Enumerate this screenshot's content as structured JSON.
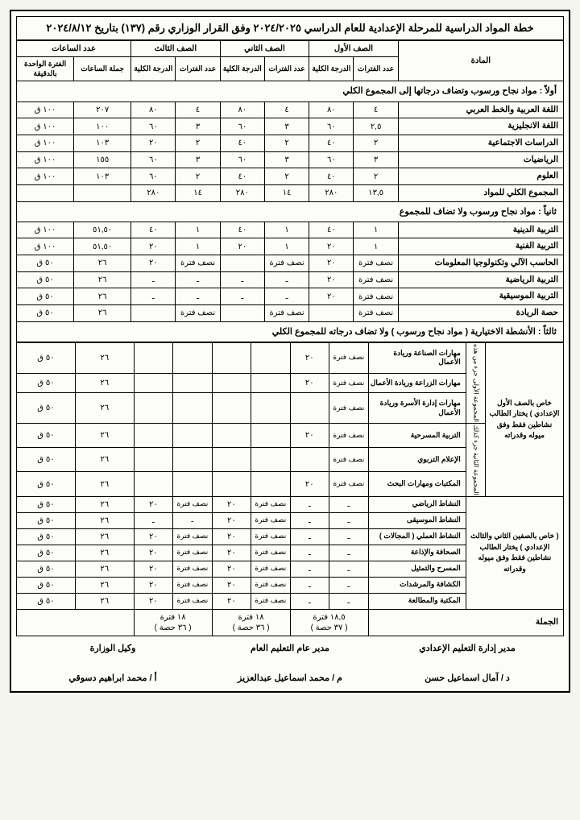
{
  "title": "خطة المواد الدراسية للمرحلة الإعدادية للعام الدراسي ٢٠٢٤/٢٠٢٥ وفق القرار الوزاري رقم (١٣٧) بتاريخ ٢٠٢٤/٨/١٢",
  "headers": {
    "subject": "المادة",
    "grade1": "الصف الأول",
    "grade2": "الصف الثاني",
    "grade3": "الصف الثالث",
    "hours": "عدد الساعات",
    "periods": "عدد الفترات",
    "total_score": "الدرجة الكلية",
    "sum_hours": "جملة الساعات",
    "unit_min": "الفترة الواحدة بالدقيقة"
  },
  "section1": {
    "label": "أولاً : مواد نجاح ورسوب وتضاف درجاتها إلى المجموع الكلي",
    "rows": [
      {
        "s": "اللغة العربية والخط العربي",
        "p1": "٤",
        "d1": "٨٠",
        "p2": "٤",
        "d2": "٨٠",
        "p3": "٤",
        "d3": "٨٠",
        "h": "٢٠٧",
        "m": "١٠٠ ق"
      },
      {
        "s": "اللغة الانجليزية",
        "p1": "٢,٥",
        "d1": "٦٠",
        "p2": "٣",
        "d2": "٦٠",
        "p3": "٣",
        "d3": "٦٠",
        "h": "١٠٠",
        "m": "١٠٠ ق"
      },
      {
        "s": "الدراسات الاجتماعية",
        "p1": "٢",
        "d1": "٤٠",
        "p2": "٢",
        "d2": "٤٠",
        "p3": "٢",
        "d3": "٢٠",
        "h": "١٠٣",
        "m": "١٠٠ ق"
      },
      {
        "s": "الرياضيات",
        "p1": "٣",
        "d1": "٦٠",
        "p2": "٣",
        "d2": "٦٠",
        "p3": "٣",
        "d3": "٦٠",
        "h": "١٥٥",
        "m": "١٠٠ ق"
      },
      {
        "s": "العلوم",
        "p1": "٢",
        "d1": "٤٠",
        "p2": "٢",
        "d2": "٤٠",
        "p3": "٢",
        "d3": "٦٠",
        "h": "١٠٣",
        "m": "١٠٠ ق"
      }
    ],
    "total": {
      "s": "المجموع الكلي للمواد",
      "p1": "١٣,٥",
      "d1": "٢٨٠",
      "p2": "١٤",
      "d2": "٢٨٠",
      "p3": "١٤",
      "d3": "٢٨٠",
      "h": "",
      "m": ""
    }
  },
  "section2": {
    "label": "ثانياً : مواد نجاح ورسوب        ولا تضاف للمجموع",
    "rows": [
      {
        "s": "التربية الدينية",
        "p1": "١",
        "d1": "٤٠",
        "p2": "١",
        "d2": "٤٠",
        "p3": "١",
        "d3": "٤٠",
        "h": "٥١,٥٠",
        "m": "١٠٠ ق"
      },
      {
        "s": "التربية الفنية",
        "p1": "١",
        "d1": "٢٠",
        "p2": "١",
        "d2": "٢٠",
        "p3": "١",
        "d3": "٢٠",
        "h": "٥١,٥٠",
        "m": "١٠٠ ق"
      },
      {
        "s": "الحاسب الآلي وتكنولوجيا المعلومات",
        "p1": "نصف فترة",
        "d1": "٢٠",
        "p2": "نصف فترة",
        "d2": "",
        "p3": "نصف فترة",
        "d3": "٢٠",
        "h": "٢٦",
        "m": "٥٠ ق"
      },
      {
        "s": "التربية الرياضية",
        "p1": "نصف فترة",
        "d1": "٢٠",
        "p2": "ـ",
        "d2": "ـ",
        "p3": "ـ",
        "d3": "ـ",
        "h": "٢٦",
        "m": "٥٠ ق"
      },
      {
        "s": "التربية الموسيقية",
        "p1": "نصف فترة",
        "d1": "٢٠",
        "p2": "ـ",
        "d2": "ـ",
        "p3": "ـ",
        "d3": "ـ",
        "h": "٢٦",
        "m": "٥٠ ق"
      },
      {
        "s": "حصة الريادة",
        "p1": "نصف فترة",
        "d1": "",
        "p2": "نصف فترة",
        "d2": "",
        "p3": "نصف فترة",
        "d3": "",
        "h": "٢٦",
        "m": "٥٠ ق"
      }
    ]
  },
  "section3": {
    "label": "ثالثاً : الأنشطة الاختيارية   ( مواد نجاح ورسوب ) ولا تضاف درجاته للمجموع الكلي",
    "note1": "خاص بالصف الأول الإعدادي ) يختار الطالب نشاطين فقط وفق ميوله وقدراته",
    "note2": "( خاص بالصفين الثاني والثالث الإعدادي ) يختار الطالب نشاطين فقط وفق ميوله وقدراته",
    "group_a": "المجموعة الأولى جزء من هذه",
    "group_b": "المجموعة الثانية جزء كذلك",
    "rowsA": [
      {
        "s": "مهارات الصناعة وريادة الأعمال",
        "p1": "نصف فترة",
        "d1": "٢٠",
        "h": "٢٦",
        "m": "٥٠ ق"
      },
      {
        "s": "مهارات الزراعة وريادة الأعمال",
        "p1": "نصف فترة",
        "d1": "٢٠",
        "h": "٢٦",
        "m": "٥٠ ق"
      },
      {
        "s": "مهارات إدارة الأسرة وريادة الأعمال",
        "p1": "نصف فترة",
        "d1": "",
        "h": "٢٦",
        "m": "٥٠ ق"
      }
    ],
    "rowsB": [
      {
        "s": "التربية المسرحية",
        "p1": "نصف فترة",
        "d1": "٢٠",
        "h": "٢٦",
        "m": "٥٠ ق"
      },
      {
        "s": "الإعلام التربوي",
        "p1": "نصف فترة",
        "d1": "",
        "h": "٢٦",
        "m": "٥٠ ق"
      },
      {
        "s": "المكتبات ومهارات البحث",
        "p1": "نصف فترة",
        "d1": "٢٠",
        "h": "٢٦",
        "m": "٥٠ ق"
      }
    ],
    "rowsC": [
      {
        "s": "النشاط الرياضي",
        "p2": "نصف فترة",
        "d2": "٢٠",
        "p3": "نصف فترة",
        "d3": "٢٠",
        "h": "٢٦",
        "m": "٥٠ ق"
      },
      {
        "s": "النشاط الموسيقى",
        "p2": "نصف فترة",
        "d2": "٢٠",
        "p3": "ـ",
        "d3": "ـ",
        "h": "٢٦",
        "m": "٥٠ ق"
      },
      {
        "s": "النشاط العملي ( المجالات )",
        "p2": "نصف فترة",
        "d2": "٢٠",
        "p3": "نصف فترة",
        "d3": "٢٠",
        "h": "٢٦",
        "m": "٥٠ ق"
      },
      {
        "s": "الصحافة والإذاعة",
        "p2": "نصف فترة",
        "d2": "٢٠",
        "p3": "نصف فترة",
        "d3": "٢٠",
        "h": "٢٦",
        "m": "٥٠ ق"
      },
      {
        "s": "المسرح والتمثيل",
        "p2": "نصف فترة",
        "d2": "٢٠",
        "p3": "نصف فترة",
        "d3": "٢٠",
        "h": "٢٦",
        "m": "٥٠ ق"
      },
      {
        "s": "الكشافة والمرشدات",
        "p2": "نصف فترة",
        "d2": "٢٠",
        "p3": "نصف فترة",
        "d3": "٢٠",
        "h": "٢٦",
        "m": "٥٠ ق"
      },
      {
        "s": "المكتبة والمطالعة",
        "p2": "نصف فترة",
        "d2": "٢٠",
        "p3": "نصف فترة",
        "d3": "٢٠",
        "h": "٢٦",
        "m": "٥٠ ق"
      }
    ]
  },
  "summary": {
    "label": "الجملة",
    "g1a": "١٨,٥ فترة",
    "g1b": "( ٣٧ حصة )",
    "g2a": "١٨ فترة",
    "g2b": "( ٣٦ حصة )",
    "g3a": "١٨ فترة",
    "g3b": "( ٣٦ حصة )"
  },
  "sign": {
    "t1": "مدير إدارة التعليم الإعدادي",
    "n1": "د / آمال اسماعيل حسن",
    "t2": "مدير عام التعليم العام",
    "n2": "م / محمد اسماعيل عبدالعزيز",
    "t3": "وكيل الوزارة",
    "n3": "أ / محمد ابراهيم دسوقي"
  }
}
